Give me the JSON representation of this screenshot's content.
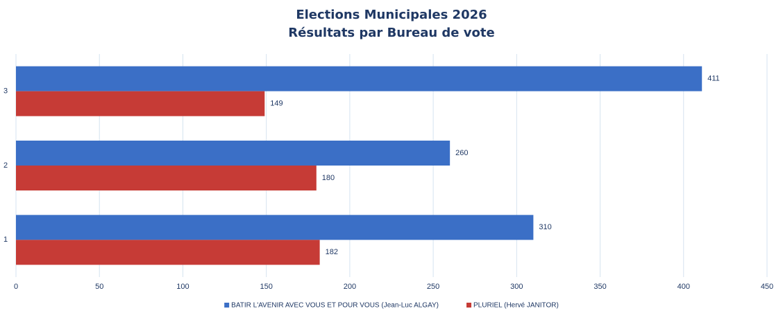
{
  "chart_data": {
    "type": "barh",
    "title": "Elections Municipales 2026",
    "subtitle": "Résultats par Bureau de vote",
    "categories": [
      "1",
      "2",
      "3"
    ],
    "series": [
      {
        "name": "BATIR L'AVENIR AVEC VOUS ET POUR VOUS (Jean-Luc ALGAY)",
        "color": "#3b6fc6",
        "values": [
          310,
          260,
          411
        ]
      },
      {
        "name": "PLURIEL (Hervé JANITOR)",
        "color": "#c63b36",
        "values": [
          182,
          180,
          149
        ]
      }
    ],
    "xlim": [
      0,
      450
    ],
    "xticks": [
      0,
      50,
      100,
      150,
      200,
      250,
      300,
      350,
      400,
      450
    ],
    "grid": true,
    "legend": "bottom"
  }
}
